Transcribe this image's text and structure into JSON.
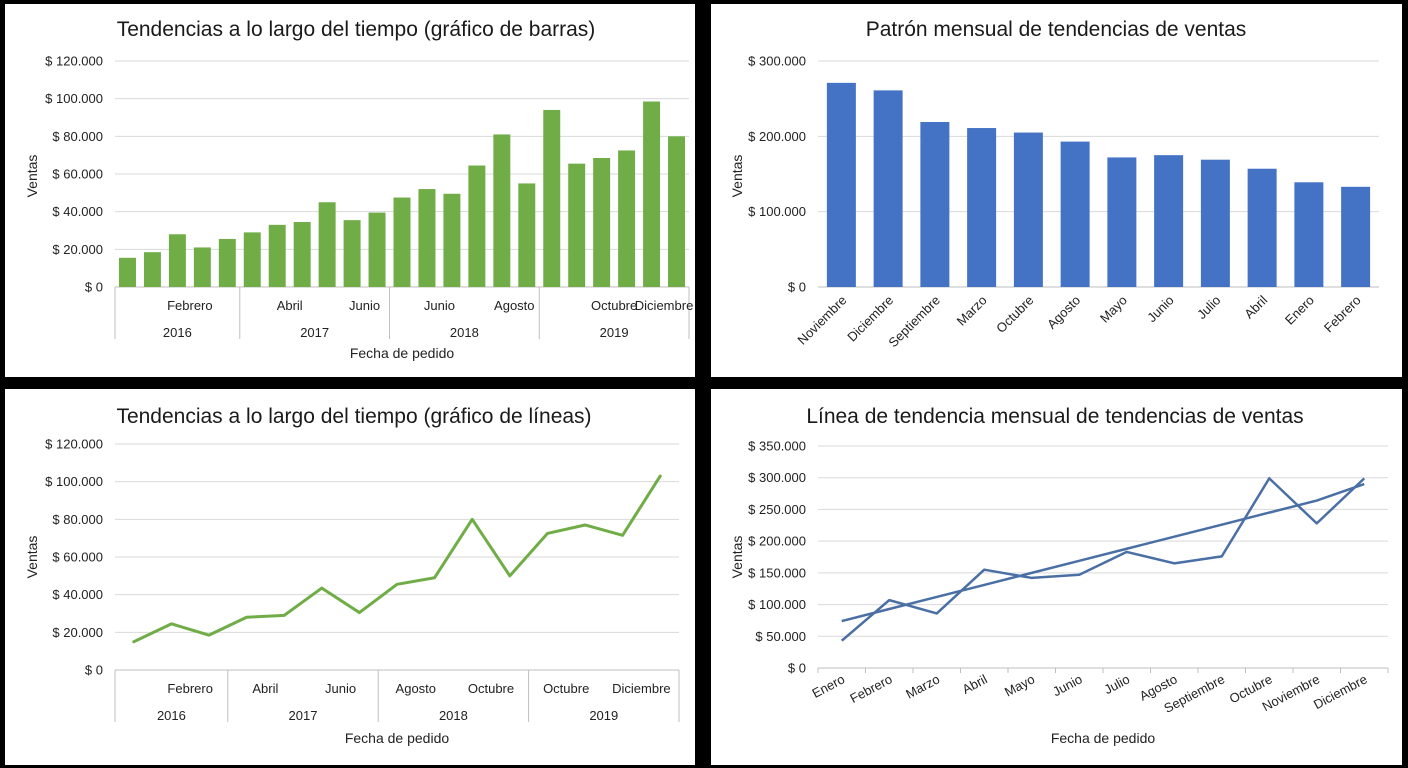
{
  "colors": {
    "green": "#70AD47",
    "blue": "#4472C4",
    "blue_line": "#4A6FA5",
    "grid": "#D9D9D9",
    "axis": "#BFBFBF"
  },
  "chart_data": [
    {
      "id": "c1",
      "type": "bar",
      "title": "Tendencias a lo largo del tiempo (gráfico de barras)",
      "ylabel": "Ventas",
      "xlabel": "Fecha de pedido",
      "ylim": [
        0,
        120000
      ],
      "yticks": [
        "$ 0",
        "$ 20.000",
        "$ 40.000",
        "$ 60.000",
        "$ 80.000",
        "$ 100.000",
        "$ 120.000"
      ],
      "values": [
        15500,
        18500,
        28000,
        21000,
        25500,
        29000,
        33000,
        34500,
        45000,
        35500,
        39500,
        47500,
        52000,
        49500,
        64500,
        81000,
        55000,
        94000,
        65500,
        68500,
        72500,
        98500,
        80000
      ],
      "month_labels": [
        {
          "label": "Febrero",
          "index": 2.5
        },
        {
          "label": "Abril",
          "index": 6.5
        },
        {
          "label": "Junio",
          "index": 9.5
        },
        {
          "label": "Junio",
          "index": 12.5
        },
        {
          "label": "Agosto",
          "index": 15.5
        },
        {
          "label": "Octubre",
          "index": 19.5
        },
        {
          "label": "Diciembre",
          "index": 21.5
        }
      ],
      "years": [
        {
          "label": "2016",
          "start": 0,
          "end": 5
        },
        {
          "label": "2017",
          "start": 5,
          "end": 11
        },
        {
          "label": "2018",
          "start": 11,
          "end": 17
        },
        {
          "label": "2019",
          "start": 17,
          "end": 23
        }
      ]
    },
    {
      "id": "c2",
      "type": "bar",
      "title": "Patrón mensual de tendencias de ventas",
      "ylabel": "Ventas",
      "xlabel": "",
      "ylim": [
        0,
        300000
      ],
      "yticks": [
        "$ 0",
        "$ 100.000",
        "$ 200.000",
        "$ 300.000"
      ],
      "categories": [
        "Noviembre",
        "Diciembre",
        "Septiembre",
        "Marzo",
        "Octubre",
        "Agosto",
        "Mayo",
        "Junio",
        "Julio",
        "Abril",
        "Enero",
        "Febrero"
      ],
      "values": [
        271000,
        261000,
        219000,
        211000,
        205000,
        193000,
        172000,
        175000,
        169000,
        157000,
        139000,
        133000
      ]
    },
    {
      "id": "c3",
      "type": "line",
      "title": "Tendencias a lo largo del tiempo (gráfico de líneas)",
      "ylabel": "Ventas",
      "xlabel": "Fecha de pedido",
      "ylim": [
        0,
        120000
      ],
      "yticks": [
        "$ 0",
        "$ 20.000",
        "$ 40.000",
        "$ 60.000",
        "$ 80.000",
        "$ 100.000",
        "$ 120.000"
      ],
      "values": [
        15000,
        24500,
        18500,
        28000,
        29000,
        43500,
        30500,
        45500,
        49000,
        80000,
        50000,
        72500,
        77000,
        71500,
        103000
      ],
      "month_labels": [
        {
          "label": "Febrero",
          "index": 1.5
        },
        {
          "label": "Abril",
          "index": 3.5
        },
        {
          "label": "Junio",
          "index": 5.5
        },
        {
          "label": "Agosto",
          "index": 7.5
        },
        {
          "label": "Octubre",
          "index": 9.5
        },
        {
          "label": "Octubre",
          "index": 11.5
        },
        {
          "label": "Diciembre",
          "index": 13.5
        }
      ],
      "years": [
        {
          "label": "2016",
          "start": 0,
          "end": 3
        },
        {
          "label": "2017",
          "start": 3,
          "end": 7
        },
        {
          "label": "2018",
          "start": 7,
          "end": 11
        },
        {
          "label": "2019",
          "start": 11,
          "end": 15
        }
      ]
    },
    {
      "id": "c4",
      "type": "line",
      "title": "Línea de tendencia mensual de tendencias de ventas",
      "ylabel": "Ventas",
      "xlabel": "Fecha de pedido",
      "ylim": [
        0,
        350000
      ],
      "yticks": [
        "$ 0",
        "$ 50.000",
        "$ 100.000",
        "$ 150.000",
        "$ 200.000",
        "$ 250.000",
        "$ 300.000",
        "$ 350.000"
      ],
      "categories": [
        "Enero",
        "Febrero",
        "Marzo",
        "Abril",
        "Mayo",
        "Junio",
        "Julio",
        "Agosto",
        "Septiembre",
        "Octubre",
        "Noviembre",
        "Diciembre"
      ],
      "values": [
        43000,
        107000,
        86000,
        155000,
        142000,
        147000,
        183000,
        165000,
        176000,
        299000,
        228000,
        299000
      ],
      "trendline": [
        74000,
        93000,
        112000,
        131000,
        150000,
        169000,
        188000,
        207000,
        226000,
        245000,
        264000,
        290000
      ]
    }
  ]
}
